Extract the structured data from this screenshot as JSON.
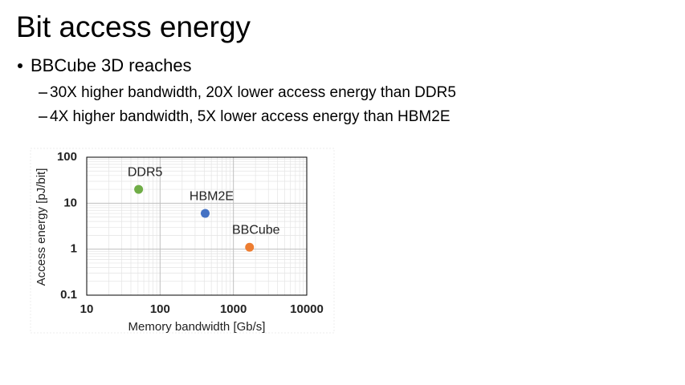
{
  "slide": {
    "title": "Bit access energy",
    "bullet": "BBCube 3D reaches",
    "sub_bullets": [
      "30X higher bandwidth, 20X lower access energy than DDR5",
      "4X higher bandwidth, 5X lower access energy than HBM2E"
    ]
  },
  "chart_data": {
    "type": "scatter",
    "xlabel": "Memory bandwidth [Gb/s]",
    "ylabel": "Access energy [pJ/bit]",
    "xscale": "log",
    "yscale": "log",
    "xlim": [
      10,
      10000
    ],
    "ylim": [
      0.1,
      100
    ],
    "xticks": [
      10,
      100,
      1000,
      10000
    ],
    "yticks": [
      0.1,
      1,
      10,
      100
    ],
    "grid": true,
    "minor_grid": true,
    "series": [
      {
        "name": "DDR5",
        "color": "#70ad47",
        "x": [
          51
        ],
        "values": [
          20
        ]
      },
      {
        "name": "HBM2E",
        "color": "#4472c4",
        "x": [
          412
        ],
        "values": [
          6
        ]
      },
      {
        "name": "BBCube",
        "color": "#ed7d31",
        "x": [
          1660
        ],
        "values": [
          1.1
        ]
      }
    ]
  }
}
